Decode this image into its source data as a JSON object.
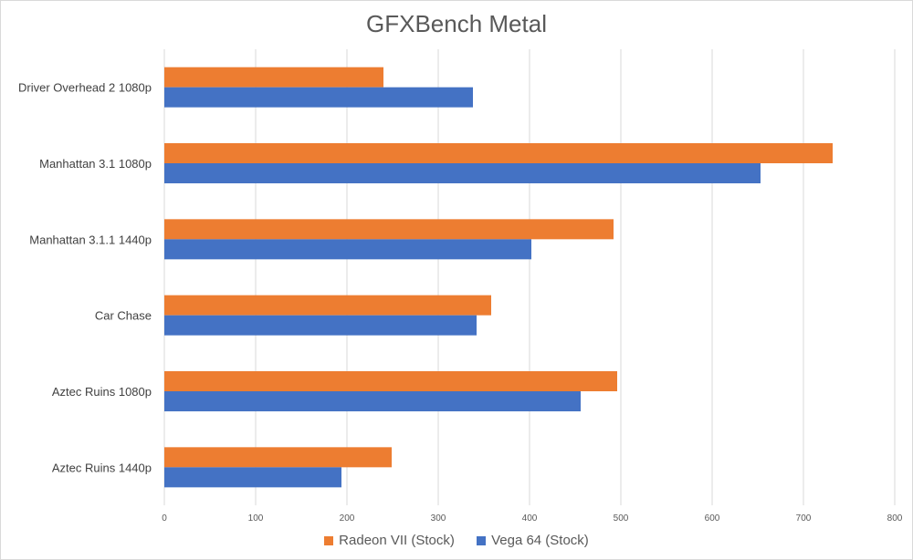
{
  "chart_data": {
    "type": "bar",
    "orientation": "horizontal",
    "title": "GFXBench Metal",
    "categories": [
      "Driver Overhead 2 1080p",
      "Manhattan 3.1 1080p",
      "Manhattan 3.1.1 1440p",
      "Car Chase",
      "Aztec Ruins 1080p",
      "Aztec Ruins 1440p"
    ],
    "series": [
      {
        "name": "Radeon VII (Stock)",
        "color": "#ed7d31",
        "values": [
          240,
          732,
          492,
          358,
          496,
          249
        ]
      },
      {
        "name": "Vega 64 (Stock)",
        "color": "#4472c4",
        "values": [
          338,
          653,
          402,
          342,
          456,
          194
        ]
      }
    ],
    "xlim": [
      0,
      800
    ],
    "xticks": [
      "0",
      "100",
      "200",
      "300",
      "400",
      "500",
      "600",
      "700",
      "800"
    ],
    "xlabel": "",
    "ylabel": "",
    "grid": true,
    "legend_position": "bottom"
  }
}
